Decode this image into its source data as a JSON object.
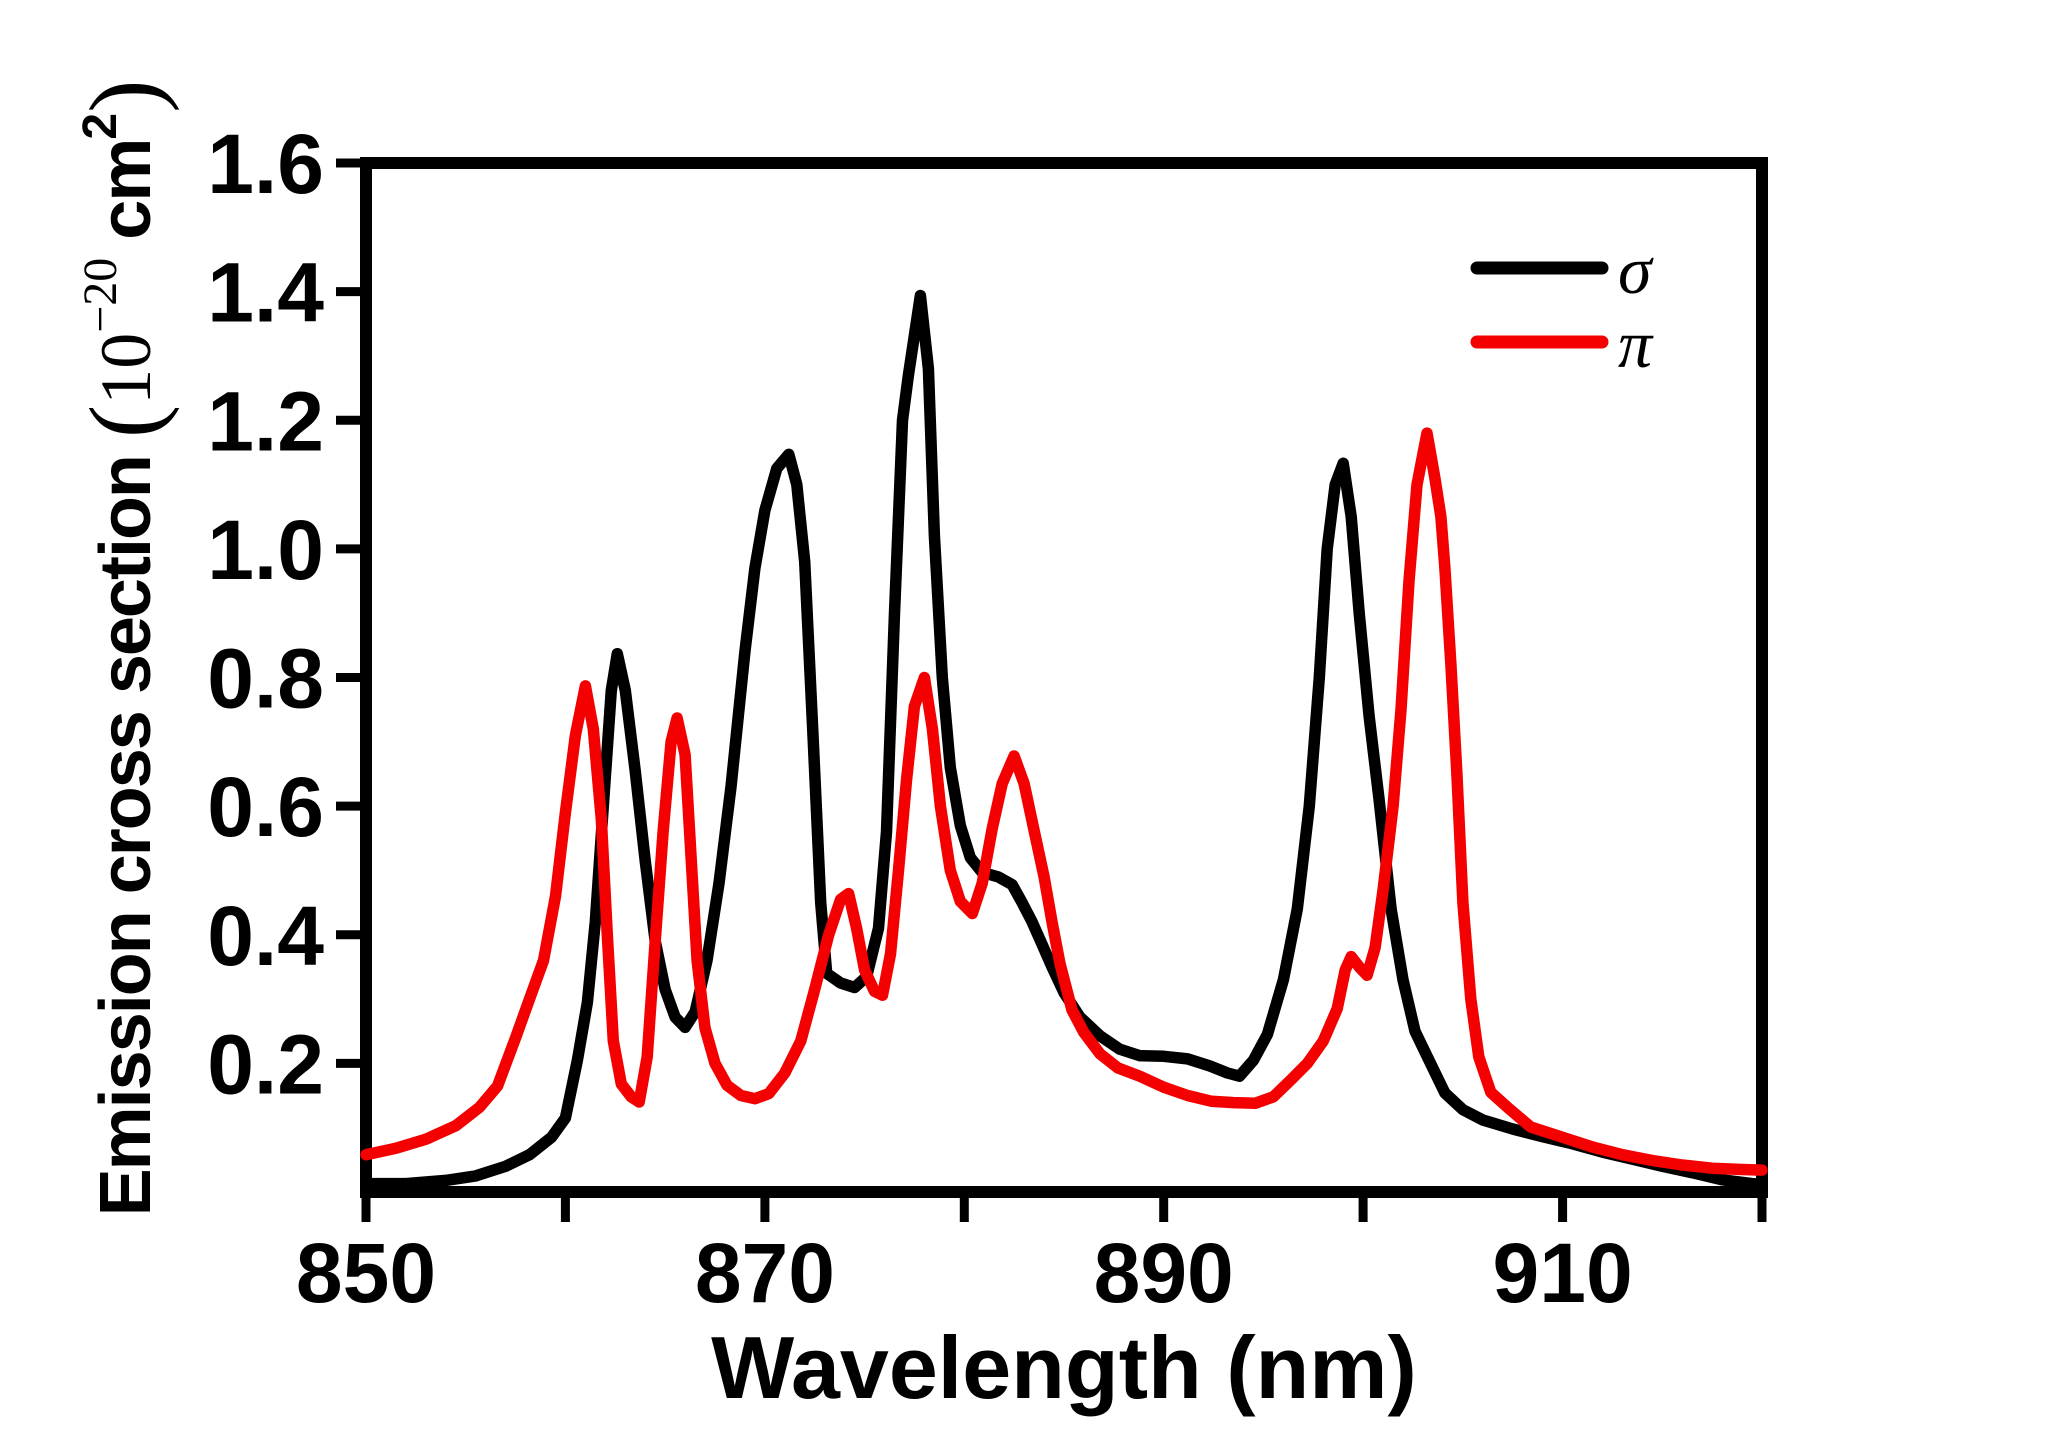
{
  "page": {
    "background": "#ffffff",
    "axis_color": "#000000"
  },
  "chart_data": {
    "type": "line",
    "title": "",
    "xlabel": "Wavelength (nm)",
    "ylabel": {
      "full": "Emission cross section (10−20 cm2)",
      "prefix": "Emission cross section ",
      "open_paren": "(",
      "mantissa": "10",
      "exponent": "−20",
      "unit": " cm",
      "unit_exponent": "2",
      "close_paren": ")"
    },
    "xlim": [
      850,
      920
    ],
    "ylim": [
      0,
      1.6
    ],
    "grid": false,
    "x_ticks_all": [
      850,
      860,
      870,
      880,
      890,
      900,
      910,
      920
    ],
    "x_tick_labels": [
      {
        "value": 850,
        "label": "850"
      },
      {
        "value": 870,
        "label": "870"
      },
      {
        "value": 890,
        "label": "890"
      },
      {
        "value": 910,
        "label": "910"
      }
    ],
    "y_ticks": [
      {
        "value": 0.2,
        "label": "0.2"
      },
      {
        "value": 0.4,
        "label": "0.4"
      },
      {
        "value": 0.6,
        "label": "0.6"
      },
      {
        "value": 0.8,
        "label": "0.8"
      },
      {
        "value": 1.0,
        "label": "1.0"
      },
      {
        "value": 1.2,
        "label": "1.2"
      },
      {
        "value": 1.4,
        "label": "1.4"
      },
      {
        "value": 1.6,
        "label": "1.6"
      }
    ],
    "legend": {
      "position": "top-right",
      "entries": [
        {
          "id": "sigma",
          "label": "σ",
          "color": "#000000"
        },
        {
          "id": "pi",
          "label": "π",
          "color": "#f40000"
        }
      ]
    },
    "series": [
      {
        "id": "sigma",
        "label": "σ",
        "color": "#000000",
        "points": [
          [
            850.0,
            0.013
          ],
          [
            852.0,
            0.013
          ],
          [
            854.0,
            0.018
          ],
          [
            855.5,
            0.025
          ],
          [
            857.0,
            0.04
          ],
          [
            858.2,
            0.058
          ],
          [
            859.3,
            0.085
          ],
          [
            860.0,
            0.115
          ],
          [
            860.6,
            0.205
          ],
          [
            861.1,
            0.295
          ],
          [
            861.5,
            0.42
          ],
          [
            861.9,
            0.6
          ],
          [
            862.3,
            0.78
          ],
          [
            862.6,
            0.837
          ],
          [
            863.0,
            0.78
          ],
          [
            863.5,
            0.655
          ],
          [
            864.0,
            0.515
          ],
          [
            864.5,
            0.39
          ],
          [
            865.0,
            0.315
          ],
          [
            865.5,
            0.272
          ],
          [
            866.0,
            0.256
          ],
          [
            866.5,
            0.28
          ],
          [
            867.1,
            0.36
          ],
          [
            867.7,
            0.48
          ],
          [
            868.3,
            0.63
          ],
          [
            869.0,
            0.84
          ],
          [
            869.5,
            0.97
          ],
          [
            870.0,
            1.06
          ],
          [
            870.6,
            1.125
          ],
          [
            871.2,
            1.147
          ],
          [
            871.6,
            1.1
          ],
          [
            872.0,
            0.98
          ],
          [
            872.4,
            0.72
          ],
          [
            872.8,
            0.45
          ],
          [
            873.1,
            0.34
          ],
          [
            873.8,
            0.325
          ],
          [
            874.5,
            0.318
          ],
          [
            875.1,
            0.335
          ],
          [
            875.7,
            0.41
          ],
          [
            876.1,
            0.56
          ],
          [
            876.5,
            0.9
          ],
          [
            876.9,
            1.2
          ],
          [
            877.2,
            1.27
          ],
          [
            877.8,
            1.394
          ],
          [
            878.2,
            1.28
          ],
          [
            878.5,
            1.02
          ],
          [
            878.9,
            0.8
          ],
          [
            879.3,
            0.66
          ],
          [
            879.8,
            0.57
          ],
          [
            880.3,
            0.52
          ],
          [
            880.9,
            0.497
          ],
          [
            881.7,
            0.49
          ],
          [
            882.4,
            0.478
          ],
          [
            882.9,
            0.45
          ],
          [
            883.4,
            0.42
          ],
          [
            883.9,
            0.385
          ],
          [
            884.4,
            0.35
          ],
          [
            885.0,
            0.31
          ],
          [
            885.8,
            0.272
          ],
          [
            886.8,
            0.243
          ],
          [
            887.8,
            0.222
          ],
          [
            888.8,
            0.212
          ],
          [
            890.0,
            0.211
          ],
          [
            891.2,
            0.207
          ],
          [
            892.3,
            0.196
          ],
          [
            893.2,
            0.185
          ],
          [
            893.8,
            0.18
          ],
          [
            894.5,
            0.205
          ],
          [
            895.2,
            0.245
          ],
          [
            896.0,
            0.33
          ],
          [
            896.7,
            0.44
          ],
          [
            897.3,
            0.6
          ],
          [
            897.8,
            0.8
          ],
          [
            898.2,
            1.0
          ],
          [
            898.6,
            1.1
          ],
          [
            899.0,
            1.133
          ],
          [
            899.4,
            1.05
          ],
          [
            899.8,
            0.9
          ],
          [
            900.3,
            0.74
          ],
          [
            900.8,
            0.61
          ],
          [
            901.4,
            0.44
          ],
          [
            902.0,
            0.33
          ],
          [
            902.6,
            0.25
          ],
          [
            903.3,
            0.205
          ],
          [
            904.1,
            0.154
          ],
          [
            905.0,
            0.128
          ],
          [
            906.0,
            0.112
          ],
          [
            907.5,
            0.098
          ],
          [
            909.0,
            0.086
          ],
          [
            910.5,
            0.075
          ],
          [
            912.0,
            0.062
          ],
          [
            913.5,
            0.051
          ],
          [
            915.0,
            0.04
          ],
          [
            916.5,
            0.03
          ],
          [
            918.0,
            0.019
          ],
          [
            919.5,
            0.013
          ],
          [
            920.0,
            0.012
          ]
        ]
      },
      {
        "id": "pi",
        "label": "π",
        "color": "#f40000",
        "points": [
          [
            850.0,
            0.058
          ],
          [
            851.5,
            0.068
          ],
          [
            853.0,
            0.082
          ],
          [
            854.5,
            0.103
          ],
          [
            855.7,
            0.132
          ],
          [
            856.6,
            0.165
          ],
          [
            857.5,
            0.24
          ],
          [
            858.2,
            0.3
          ],
          [
            858.9,
            0.36
          ],
          [
            859.5,
            0.46
          ],
          [
            860.0,
            0.59
          ],
          [
            860.5,
            0.71
          ],
          [
            861.0,
            0.787
          ],
          [
            861.4,
            0.72
          ],
          [
            861.8,
            0.58
          ],
          [
            862.1,
            0.4
          ],
          [
            862.4,
            0.235
          ],
          [
            862.8,
            0.168
          ],
          [
            863.3,
            0.148
          ],
          [
            863.7,
            0.14
          ],
          [
            864.1,
            0.21
          ],
          [
            864.5,
            0.39
          ],
          [
            864.9,
            0.56
          ],
          [
            865.3,
            0.7
          ],
          [
            865.6,
            0.737
          ],
          [
            866.0,
            0.68
          ],
          [
            866.3,
            0.52
          ],
          [
            866.6,
            0.36
          ],
          [
            867.0,
            0.255
          ],
          [
            867.5,
            0.2
          ],
          [
            868.1,
            0.166
          ],
          [
            868.8,
            0.15
          ],
          [
            869.5,
            0.145
          ],
          [
            870.2,
            0.153
          ],
          [
            871.0,
            0.185
          ],
          [
            871.8,
            0.235
          ],
          [
            872.5,
            0.315
          ],
          [
            873.2,
            0.4
          ],
          [
            873.8,
            0.455
          ],
          [
            874.2,
            0.464
          ],
          [
            874.6,
            0.41
          ],
          [
            875.0,
            0.345
          ],
          [
            875.5,
            0.312
          ],
          [
            875.9,
            0.306
          ],
          [
            876.3,
            0.37
          ],
          [
            876.7,
            0.5
          ],
          [
            877.1,
            0.64
          ],
          [
            877.5,
            0.755
          ],
          [
            878.0,
            0.8
          ],
          [
            878.4,
            0.72
          ],
          [
            878.8,
            0.6
          ],
          [
            879.3,
            0.5
          ],
          [
            879.8,
            0.452
          ],
          [
            880.4,
            0.433
          ],
          [
            880.9,
            0.48
          ],
          [
            881.4,
            0.565
          ],
          [
            881.9,
            0.635
          ],
          [
            882.5,
            0.678
          ],
          [
            883.0,
            0.635
          ],
          [
            883.5,
            0.562
          ],
          [
            884.0,
            0.49
          ],
          [
            884.4,
            0.42
          ],
          [
            884.8,
            0.355
          ],
          [
            885.4,
            0.283
          ],
          [
            886.0,
            0.248
          ],
          [
            886.8,
            0.215
          ],
          [
            887.7,
            0.193
          ],
          [
            888.8,
            0.18
          ],
          [
            890.0,
            0.163
          ],
          [
            891.2,
            0.15
          ],
          [
            892.4,
            0.141
          ],
          [
            893.5,
            0.139
          ],
          [
            894.6,
            0.138
          ],
          [
            895.5,
            0.148
          ],
          [
            896.4,
            0.175
          ],
          [
            897.2,
            0.2
          ],
          [
            898.0,
            0.235
          ],
          [
            898.7,
            0.285
          ],
          [
            899.1,
            0.345
          ],
          [
            899.4,
            0.366
          ],
          [
            899.8,
            0.35
          ],
          [
            900.2,
            0.337
          ],
          [
            900.6,
            0.38
          ],
          [
            901.0,
            0.47
          ],
          [
            901.5,
            0.6
          ],
          [
            901.9,
            0.75
          ],
          [
            902.3,
            0.95
          ],
          [
            902.7,
            1.1
          ],
          [
            903.2,
            1.18
          ],
          [
            903.6,
            1.11
          ],
          [
            903.9,
            1.05
          ],
          [
            904.1,
            0.97
          ],
          [
            904.4,
            0.82
          ],
          [
            904.7,
            0.65
          ],
          [
            905.0,
            0.45
          ],
          [
            905.4,
            0.3
          ],
          [
            905.8,
            0.21
          ],
          [
            906.4,
            0.155
          ],
          [
            907.3,
            0.13
          ],
          [
            908.4,
            0.101
          ],
          [
            910.0,
            0.085
          ],
          [
            911.5,
            0.07
          ],
          [
            913.0,
            0.058
          ],
          [
            914.5,
            0.049
          ],
          [
            916.0,
            0.042
          ],
          [
            917.5,
            0.037
          ],
          [
            919.0,
            0.035
          ],
          [
            920.0,
            0.034
          ]
        ]
      }
    ]
  }
}
